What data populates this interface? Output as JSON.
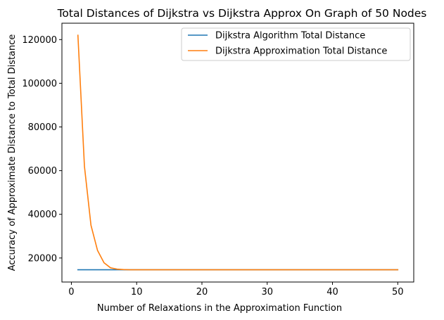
{
  "chart_data": {
    "type": "line",
    "title": "Total Distances of Dijkstra vs Dijkstra Approx On Graph of 50 Nodes",
    "xlabel": "Number of Relaxations in the Approximation Function",
    "ylabel": "Accuracy of Approximate Distance to Total Distance",
    "xlim": [
      -1.45,
      52.45
    ],
    "ylim": [
      9000,
      127500
    ],
    "xticks": [
      0,
      10,
      20,
      30,
      40,
      50
    ],
    "yticks": [
      20000,
      40000,
      60000,
      80000,
      100000,
      120000
    ],
    "grid": false,
    "legend": "top-right",
    "series": [
      {
        "name": "Dijkstra Algorithm Total Distance",
        "color": "#1f77b4",
        "x": [
          1,
          50
        ],
        "values": [
          14600,
          14600
        ]
      },
      {
        "name": "Dijkstra Approximation Total Distance",
        "color": "#ff7f0e",
        "x": [
          1,
          2,
          3,
          4,
          5,
          6,
          7,
          8,
          9,
          10,
          50
        ],
        "values": [
          122000,
          62000,
          35000,
          23500,
          17800,
          15500,
          14900,
          14700,
          14600,
          14600,
          14600
        ]
      }
    ]
  }
}
